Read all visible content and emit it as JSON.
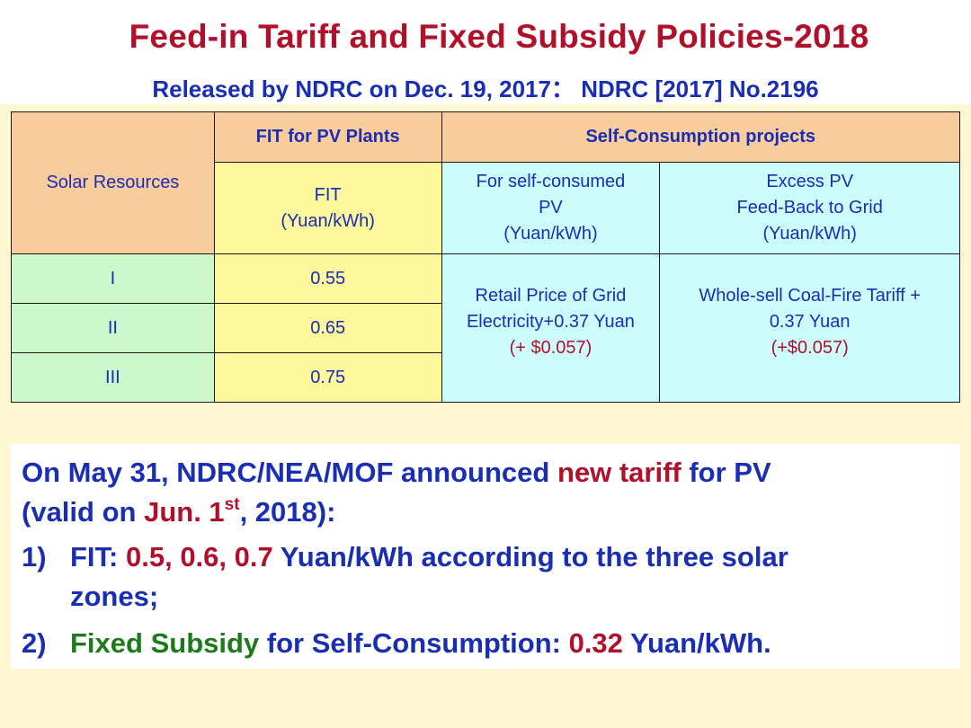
{
  "header": {
    "title": "Feed-in Tariff and Fixed Subsidy Policies-2018",
    "subtitle": "Released by NDRC on Dec. 19, 2017： NDRC [2017] No.2196"
  },
  "table": {
    "solar_resources_header": "Solar Resources",
    "fit_plants_header": "FIT for PV Plants",
    "self_consumption_header": "Self-Consumption projects",
    "fit_sub_header": [
      "FIT",
      "(Yuan/kWh)"
    ],
    "self_consumed_header": [
      "For self-consumed",
      "PV",
      "(Yuan/kWh)"
    ],
    "excess_header": [
      "Excess PV",
      "Feed-Back to Grid",
      "(Yuan/kWh)"
    ],
    "rows": [
      {
        "zone": "I",
        "fit": "0.55"
      },
      {
        "zone": "II",
        "fit": "0.65"
      },
      {
        "zone": "III",
        "fit": "0.75"
      }
    ],
    "self_consumed_value": [
      "Retail Price of Grid",
      "Electricity+0.37 Yuan",
      "(+ $0.057)"
    ],
    "excess_value": [
      "Whole-sell Coal-Fire Tariff +",
      "0.37 Yuan",
      "(+$0.057)"
    ]
  },
  "announcement": {
    "line1_a": "On May 31, NDRC/NEA/MOF announced ",
    "line1_b": "new tariff",
    "line1_c": " for PV",
    "line2_a": "(valid on ",
    "line2_b": "Jun. 1",
    "line2_sup": "st",
    "line2_c": ", 2018):",
    "item1_num": "1)",
    "item1_label": "FIT:  ",
    "item1_values": "0.5, 0.6, 0.7",
    "item1_rest": " Yuan/kWh according to the three solar",
    "item1_cont": "zones;",
    "item2_num": "2)",
    "item2_label": "Fixed Subsidy",
    "item2_mid": " for Self-Consumption: ",
    "item2_value": "0.32",
    "item2_unit": " Yuan/kWh."
  }
}
